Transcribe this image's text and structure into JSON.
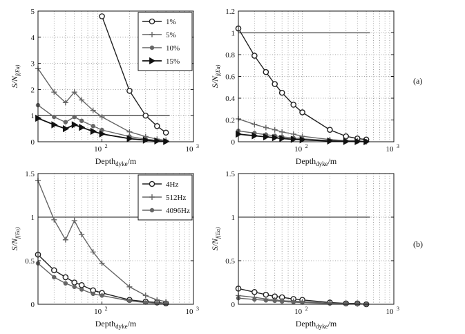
{
  "figure": {
    "label_a": "(a)",
    "label_b": "(b)"
  },
  "chart_data": [
    {
      "id": "a-left",
      "type": "line",
      "xscale": "log",
      "xlim": [
        20,
        1000
      ],
      "ylim": [
        0,
        5
      ],
      "xticks": [
        {
          "v": 100,
          "label": "10",
          "exp": "2"
        },
        {
          "v": 1000,
          "label": "10",
          "exp": "3"
        }
      ],
      "yticks": [
        "0",
        "1",
        "2",
        "3",
        "4",
        "5"
      ],
      "xlabel": {
        "main": "Depth",
        "sub": "dyke",
        "tail": "/m"
      },
      "ylabel": {
        "main": "S/N",
        "sub": "f(Ea)"
      },
      "reference_line": {
        "y": 1,
        "x_from": 20,
        "x_to": 550
      },
      "legend": {
        "position": "top-right",
        "entries": [
          "1%",
          "5%",
          "10%",
          "15%"
        ]
      },
      "series": [
        {
          "name": "1%",
          "marker": "circle",
          "color": "#222222",
          "x": [
            100,
            200,
            300,
            400,
            500
          ],
          "y": [
            4.8,
            1.95,
            1.0,
            0.6,
            0.35
          ]
        },
        {
          "name": "5%",
          "marker": "plus",
          "color": "#666666",
          "x": [
            20,
            30,
            40,
            50,
            60,
            80,
            100,
            200,
            300,
            400,
            500
          ],
          "y": [
            2.8,
            1.9,
            1.5,
            1.9,
            1.6,
            1.2,
            0.95,
            0.38,
            0.2,
            0.1,
            0.05
          ]
        },
        {
          "name": "10%",
          "marker": "dot",
          "color": "#666666",
          "x": [
            20,
            30,
            40,
            50,
            60,
            80,
            100,
            200,
            300,
            400,
            500
          ],
          "y": [
            1.4,
            0.95,
            0.75,
            0.95,
            0.8,
            0.6,
            0.45,
            0.2,
            0.1,
            0.05,
            0.02
          ]
        },
        {
          "name": "15%",
          "marker": "triangle",
          "color": "#111111",
          "x": [
            20,
            30,
            40,
            50,
            60,
            80,
            100,
            200,
            300,
            400,
            500
          ],
          "y": [
            0.9,
            0.65,
            0.5,
            0.65,
            0.55,
            0.4,
            0.3,
            0.12,
            0.06,
            0.03,
            0.01
          ]
        }
      ]
    },
    {
      "id": "a-right",
      "type": "line",
      "xscale": "log",
      "xlim": [
        20,
        1000
      ],
      "ylim": [
        0,
        1.2
      ],
      "xticks": [
        {
          "v": 100,
          "label": "10",
          "exp": "2"
        },
        {
          "v": 1000,
          "label": "10",
          "exp": "3"
        }
      ],
      "yticks": [
        "0",
        "0.2",
        "0.4",
        "0.6",
        "0.8",
        "1",
        "1.2"
      ],
      "xlabel": {
        "main": "Depth",
        "sub": "dyke",
        "tail": "/m"
      },
      "ylabel": {
        "main": "S/N",
        "sub": "f(Ea)"
      },
      "reference_line": {
        "y": 1,
        "x_from": 20,
        "x_to": 550
      },
      "series": [
        {
          "name": "1%",
          "marker": "circle",
          "color": "#222222",
          "x": [
            20,
            30,
            40,
            50,
            60,
            80,
            100,
            200,
            300,
            400,
            500
          ],
          "y": [
            1.04,
            0.79,
            0.64,
            0.53,
            0.45,
            0.34,
            0.27,
            0.11,
            0.05,
            0.03,
            0.02
          ]
        },
        {
          "name": "5%",
          "marker": "plus",
          "color": "#666666",
          "x": [
            20,
            30,
            40,
            50,
            60,
            80,
            100,
            200,
            300,
            400,
            500
          ],
          "y": [
            0.21,
            0.16,
            0.13,
            0.11,
            0.09,
            0.07,
            0.05,
            0.02,
            0.01,
            0.01,
            0.0
          ]
        },
        {
          "name": "10%",
          "marker": "dot",
          "color": "#666666",
          "x": [
            20,
            30,
            40,
            50,
            60,
            80,
            100,
            200,
            300,
            400,
            500
          ],
          "y": [
            0.1,
            0.08,
            0.065,
            0.055,
            0.045,
            0.035,
            0.027,
            0.01,
            0.005,
            0.003,
            0.002
          ]
        },
        {
          "name": "15%",
          "marker": "triangle",
          "color": "#111111",
          "x": [
            20,
            30,
            40,
            50,
            60,
            80,
            100,
            200,
            300,
            400,
            500
          ],
          "y": [
            0.07,
            0.055,
            0.045,
            0.037,
            0.03,
            0.022,
            0.018,
            0.007,
            0.003,
            0.002,
            0.001
          ]
        }
      ]
    },
    {
      "id": "b-left",
      "type": "line",
      "xscale": "log",
      "xlim": [
        20,
        1000
      ],
      "ylim": [
        0,
        1.5
      ],
      "xticks": [
        {
          "v": 100,
          "label": "10",
          "exp": "2"
        },
        {
          "v": 1000,
          "label": "10",
          "exp": "3"
        }
      ],
      "yticks": [
        "0",
        "0.5",
        "1",
        "1.5"
      ],
      "xlabel": {
        "main": "Depth",
        "sub": "dyke",
        "tail": "/m"
      },
      "ylabel": {
        "main": "S/N",
        "sub": "f(Ea)"
      },
      "reference_line": {
        "y": 1,
        "x_from": 20,
        "x_to": 550
      },
      "legend": {
        "position": "top-right",
        "entries": [
          "4Hz",
          "512Hz",
          "4096Hz"
        ]
      },
      "series": [
        {
          "name": "4Hz",
          "marker": "circle",
          "color": "#222222",
          "x": [
            20,
            30,
            40,
            50,
            60,
            80,
            100,
            200,
            300,
            400,
            500
          ],
          "y": [
            0.57,
            0.39,
            0.31,
            0.25,
            0.22,
            0.16,
            0.13,
            0.05,
            0.03,
            0.02,
            0.01
          ]
        },
        {
          "name": "512Hz",
          "marker": "plus",
          "color": "#666666",
          "x": [
            20,
            30,
            40,
            50,
            60,
            80,
            100,
            200,
            300,
            400,
            500
          ],
          "y": [
            1.42,
            0.97,
            0.74,
            0.96,
            0.8,
            0.6,
            0.47,
            0.2,
            0.1,
            0.05,
            0.03
          ]
        },
        {
          "name": "4096Hz",
          "marker": "dot",
          "color": "#666666",
          "x": [
            20,
            30,
            40,
            50,
            60,
            80,
            100,
            200,
            300,
            400,
            500
          ],
          "y": [
            0.47,
            0.31,
            0.24,
            0.2,
            0.17,
            0.12,
            0.1,
            0.04,
            0.02,
            0.01,
            0.01
          ]
        }
      ]
    },
    {
      "id": "b-right",
      "type": "line",
      "xscale": "log",
      "xlim": [
        20,
        1000
      ],
      "ylim": [
        0,
        1.5
      ],
      "xticks": [
        {
          "v": 100,
          "label": "10",
          "exp": "2"
        },
        {
          "v": 1000,
          "label": "10",
          "exp": "3"
        }
      ],
      "yticks": [
        "0",
        "0.5",
        "1",
        "1.5"
      ],
      "xlabel": {
        "main": "Depth",
        "sub": "dyke",
        "tail": "/m"
      },
      "ylabel": {
        "main": "S/N",
        "sub": "f(Ea)"
      },
      "reference_line": {
        "y": 1,
        "x_from": 20,
        "x_to": 550
      },
      "series": [
        {
          "name": "4Hz",
          "marker": "circle",
          "color": "#222222",
          "x": [
            20,
            30,
            40,
            50,
            60,
            80,
            100,
            200,
            300,
            400,
            500
          ],
          "y": [
            0.18,
            0.14,
            0.11,
            0.09,
            0.08,
            0.06,
            0.05,
            0.02,
            0.01,
            0.01,
            0.0
          ]
        },
        {
          "name": "512Hz",
          "marker": "plus",
          "color": "#666666",
          "x": [
            20,
            30,
            40,
            50,
            60,
            80,
            100,
            200,
            300,
            400,
            500
          ],
          "y": [
            0.1,
            0.08,
            0.06,
            0.05,
            0.04,
            0.035,
            0.03,
            0.012,
            0.006,
            0.004,
            0.002
          ]
        },
        {
          "name": "4096Hz",
          "marker": "dot",
          "color": "#666666",
          "x": [
            20,
            30,
            40,
            50,
            60,
            80,
            100,
            200,
            300,
            400,
            500
          ],
          "y": [
            0.07,
            0.055,
            0.045,
            0.04,
            0.032,
            0.025,
            0.02,
            0.008,
            0.004,
            0.003,
            0.001
          ]
        }
      ]
    }
  ]
}
